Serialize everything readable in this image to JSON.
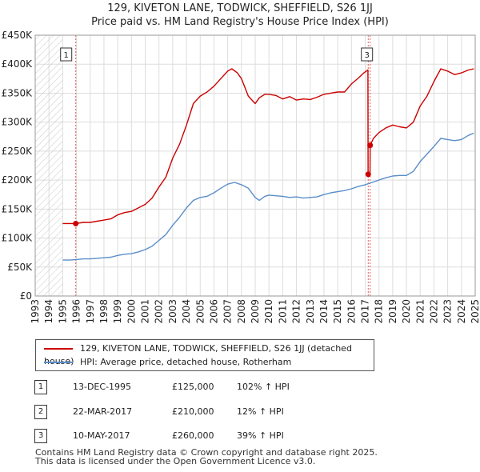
{
  "title_line1": "129, KIVETON LANE, TODWICK, SHEFFIELD, S26 1JJ",
  "title_line2": "Price paid vs. HM Land Registry's House Price Index (HPI)",
  "colors": {
    "property": "#cc0000",
    "hpi": "#5b8ec9",
    "grid": "#dddddd",
    "hatch": "#c8c8c8"
  },
  "chart_data": {
    "type": "line",
    "xlim": [
      1993,
      2025
    ],
    "ylim": [
      0,
      450000
    ],
    "y_ticks": [
      0,
      50000,
      100000,
      150000,
      200000,
      250000,
      300000,
      350000,
      400000,
      450000
    ],
    "y_tick_labels": [
      "£0",
      "£50K",
      "£100K",
      "£150K",
      "£200K",
      "£250K",
      "£300K",
      "£350K",
      "£400K",
      "£450K"
    ],
    "x_tick_labels": [
      "1993",
      "1994",
      "1995",
      "1996",
      "1997",
      "1998",
      "1999",
      "2000",
      "2001",
      "2002",
      "2003",
      "2004",
      "2005",
      "2006",
      "2007",
      "2008",
      "2009",
      "2010",
      "2011",
      "2012",
      "2013",
      "2014",
      "2015",
      "2016",
      "2017",
      "2018",
      "2019",
      "2020",
      "2021",
      "2022",
      "2023",
      "2024",
      "2025"
    ],
    "hatched_region": [
      1993,
      1995.0
    ],
    "series": [
      {
        "name": "129, KIVETON LANE, TODWICK, SHEFFIELD, S26 1JJ (detached house)",
        "x": [
          1995.0,
          1995.5,
          1995.95,
          1996.5,
          1997,
          1997.5,
          1998,
          1998.5,
          1999,
          1999.5,
          2000,
          2000.5,
          2001,
          2001.5,
          2002,
          2002.5,
          2003,
          2003.5,
          2004,
          2004.5,
          2005,
          2005.5,
          2006,
          2006.5,
          2007,
          2007.3,
          2007.7,
          2008,
          2008.5,
          2009,
          2009.3,
          2009.7,
          2010,
          2010.5,
          2011,
          2011.5,
          2012,
          2012.5,
          2013,
          2013.5,
          2014,
          2014.5,
          2015,
          2015.5,
          2016,
          2016.5,
          2016.9,
          2017.2,
          2017.21,
          2017.35,
          2017.36,
          2017.6,
          2018,
          2018.5,
          2019,
          2019.5,
          2020,
          2020.5,
          2021,
          2021.5,
          2022,
          2022.5,
          2023,
          2023.5,
          2024,
          2024.5,
          2024.9
        ],
        "values": [
          125000,
          125000,
          125000,
          127000,
          127000,
          129000,
          131000,
          133000,
          140000,
          144000,
          146000,
          152000,
          158000,
          169000,
          188000,
          205000,
          238000,
          262000,
          295000,
          332000,
          345000,
          352000,
          362000,
          375000,
          388000,
          392000,
          385000,
          375000,
          345000,
          332000,
          342000,
          348000,
          348000,
          346000,
          340000,
          344000,
          338000,
          340000,
          339000,
          343000,
          348000,
          350000,
          352000,
          352000,
          366000,
          376000,
          385000,
          390000,
          210000,
          210000,
          260000,
          272000,
          282000,
          290000,
          295000,
          292000,
          290000,
          300000,
          328000,
          345000,
          370000,
          392000,
          388000,
          382000,
          385000,
          390000,
          392000
        ]
      },
      {
        "name": "HPI: Average price, detached house, Rotherham",
        "x": [
          1995.0,
          1995.5,
          1996,
          1996.5,
          1997,
          1997.5,
          1998,
          1998.5,
          1999,
          1999.5,
          2000,
          2000.5,
          2001,
          2001.5,
          2002,
          2002.5,
          2003,
          2003.5,
          2004,
          2004.5,
          2005,
          2005.5,
          2006,
          2006.5,
          2007,
          2007.5,
          2008,
          2008.5,
          2009,
          2009.3,
          2009.7,
          2010,
          2010.5,
          2011,
          2011.5,
          2012,
          2012.5,
          2013,
          2013.5,
          2014,
          2014.5,
          2015,
          2015.5,
          2016,
          2016.5,
          2017,
          2017.5,
          2018,
          2018.5,
          2019,
          2019.5,
          2020,
          2020.5,
          2021,
          2021.5,
          2022,
          2022.5,
          2023,
          2023.5,
          2024,
          2024.5,
          2024.9
        ],
        "values": [
          62000,
          62000,
          63000,
          64000,
          64000,
          65000,
          66000,
          67000,
          70000,
          72000,
          73000,
          76000,
          80000,
          86000,
          96000,
          106000,
          122000,
          136000,
          152000,
          165000,
          170000,
          172000,
          178000,
          186000,
          193000,
          196000,
          192000,
          186000,
          170000,
          165000,
          172000,
          174000,
          173000,
          172000,
          170000,
          171000,
          169000,
          170000,
          171000,
          175000,
          178000,
          180000,
          182000,
          185000,
          189000,
          192000,
          196000,
          200000,
          204000,
          207000,
          208000,
          208000,
          215000,
          232000,
          245000,
          258000,
          272000,
          270000,
          268000,
          270000,
          277000,
          281000
        ]
      }
    ],
    "sale_markers": [
      {
        "label": "1",
        "x": 1995.95,
        "y": 125000
      },
      {
        "label": "2",
        "x": 2017.22,
        "y": 210000
      },
      {
        "label": "3",
        "x": 2017.36,
        "y": 260000
      }
    ]
  },
  "legend": {
    "property": "129, KIVETON LANE, TODWICK, SHEFFIELD, S26 1JJ (detached house)",
    "hpi": "HPI: Average price, detached house, Rotherham"
  },
  "sales": [
    {
      "num": "1",
      "date": "13-DEC-1995",
      "price": "£125,000",
      "hpi": "102% ↑ HPI"
    },
    {
      "num": "2",
      "date": "22-MAR-2017",
      "price": "£210,000",
      "hpi": "12% ↑ HPI"
    },
    {
      "num": "3",
      "date": "10-MAY-2017",
      "price": "£260,000",
      "hpi": "39% ↑ HPI"
    }
  ],
  "footer": {
    "line1": "Contains HM Land Registry data © Crown copyright and database right 2025.",
    "line2": "This data is licensed under the Open Government Licence v3.0."
  }
}
